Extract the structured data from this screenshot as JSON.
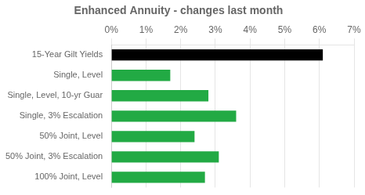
{
  "chart_data": {
    "type": "bar",
    "orientation": "horizontal",
    "title": "Enhanced Annuity - changes last month",
    "categories": [
      "15-Year Gilt Yields",
      "Single, Level",
      "Single, Level, 10-yr Guar",
      "Single, 3% Escalation",
      "50% Joint, Level",
      "50% Joint, 3% Escalation",
      "100% Joint, Level"
    ],
    "values": [
      6.1,
      1.7,
      2.8,
      3.6,
      2.4,
      3.1,
      2.7
    ],
    "colors": [
      "#000000",
      "#22aa44",
      "#22aa44",
      "#22aa44",
      "#22aa44",
      "#22aa44",
      "#22aa44"
    ],
    "xlim": [
      0,
      7
    ],
    "xticks": [
      {
        "value": 0,
        "label": "0%"
      },
      {
        "value": 1,
        "label": "1%"
      },
      {
        "value": 2,
        "label": "2%"
      },
      {
        "value": 3,
        "label": "3%"
      },
      {
        "value": 4,
        "label": "4%"
      },
      {
        "value": 5,
        "label": "5%"
      },
      {
        "value": 6,
        "label": "6%"
      },
      {
        "value": 7,
        "label": "7%"
      }
    ],
    "grid": true
  }
}
